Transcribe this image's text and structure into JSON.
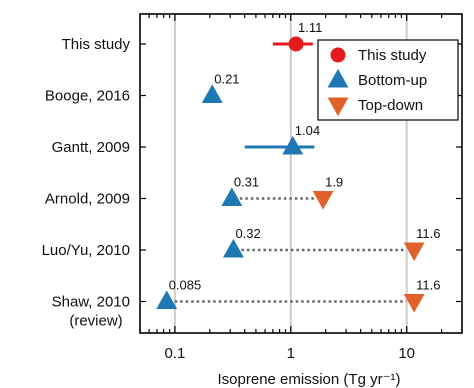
{
  "chart_data": {
    "type": "scatter",
    "xscale": "log",
    "xlim": [
      0.05,
      30
    ],
    "xlabel": "Isoprene emission (Tg yr⁻¹)",
    "xticks": [
      {
        "value": 0.1,
        "label": "0.1"
      },
      {
        "value": 1,
        "label": "1"
      },
      {
        "value": 10,
        "label": "10"
      }
    ],
    "grid": "vertical",
    "legend_position": "top-right",
    "colors": {
      "this_study": "#e41a1c",
      "bottom_up": "#1f78b4",
      "top_down": "#e0622a",
      "connector": "#666666",
      "grid": "#cccccc"
    },
    "legend": [
      {
        "key": "this_study",
        "label": "This study",
        "marker": "circle"
      },
      {
        "key": "bottom_up",
        "label": "Bottom-up",
        "marker": "triangle-up"
      },
      {
        "key": "top_down",
        "label": "Top-down",
        "marker": "triangle-down"
      }
    ],
    "categories": [
      "This study",
      "Booge, 2016",
      "Gantt, 2009",
      "Arnold, 2009",
      "Luo/Yu, 2010",
      "Shaw, 2010"
    ],
    "category_sublabels": [
      "",
      "",
      "",
      "",
      "",
      "(review)"
    ],
    "entries": [
      {
        "category": "This study",
        "points": [
          {
            "type": "this_study",
            "x": 1.11,
            "label": "1.11"
          }
        ],
        "range": [
          0.7,
          1.55
        ]
      },
      {
        "category": "Booge, 2016",
        "points": [
          {
            "type": "bottom_up",
            "x": 0.21,
            "label": "0.21"
          }
        ]
      },
      {
        "category": "Gantt, 2009",
        "points": [
          {
            "type": "bottom_up",
            "x": 1.04,
            "label": "1.04"
          }
        ],
        "range": [
          0.4,
          1.6
        ]
      },
      {
        "category": "Arnold, 2009",
        "points": [
          {
            "type": "bottom_up",
            "x": 0.31,
            "label": "0.31"
          },
          {
            "type": "top_down",
            "x": 1.9,
            "label": "1.9"
          }
        ],
        "connector": true
      },
      {
        "category": "Luo/Yu, 2010",
        "points": [
          {
            "type": "bottom_up",
            "x": 0.32,
            "label": "0.32"
          },
          {
            "type": "top_down",
            "x": 11.6,
            "label": "11.6"
          }
        ],
        "connector": true
      },
      {
        "category": "Shaw, 2010",
        "points": [
          {
            "type": "bottom_up",
            "x": 0.085,
            "label": "0.085"
          },
          {
            "type": "top_down",
            "x": 11.6,
            "label": "11.6"
          }
        ],
        "connector": true
      }
    ]
  }
}
